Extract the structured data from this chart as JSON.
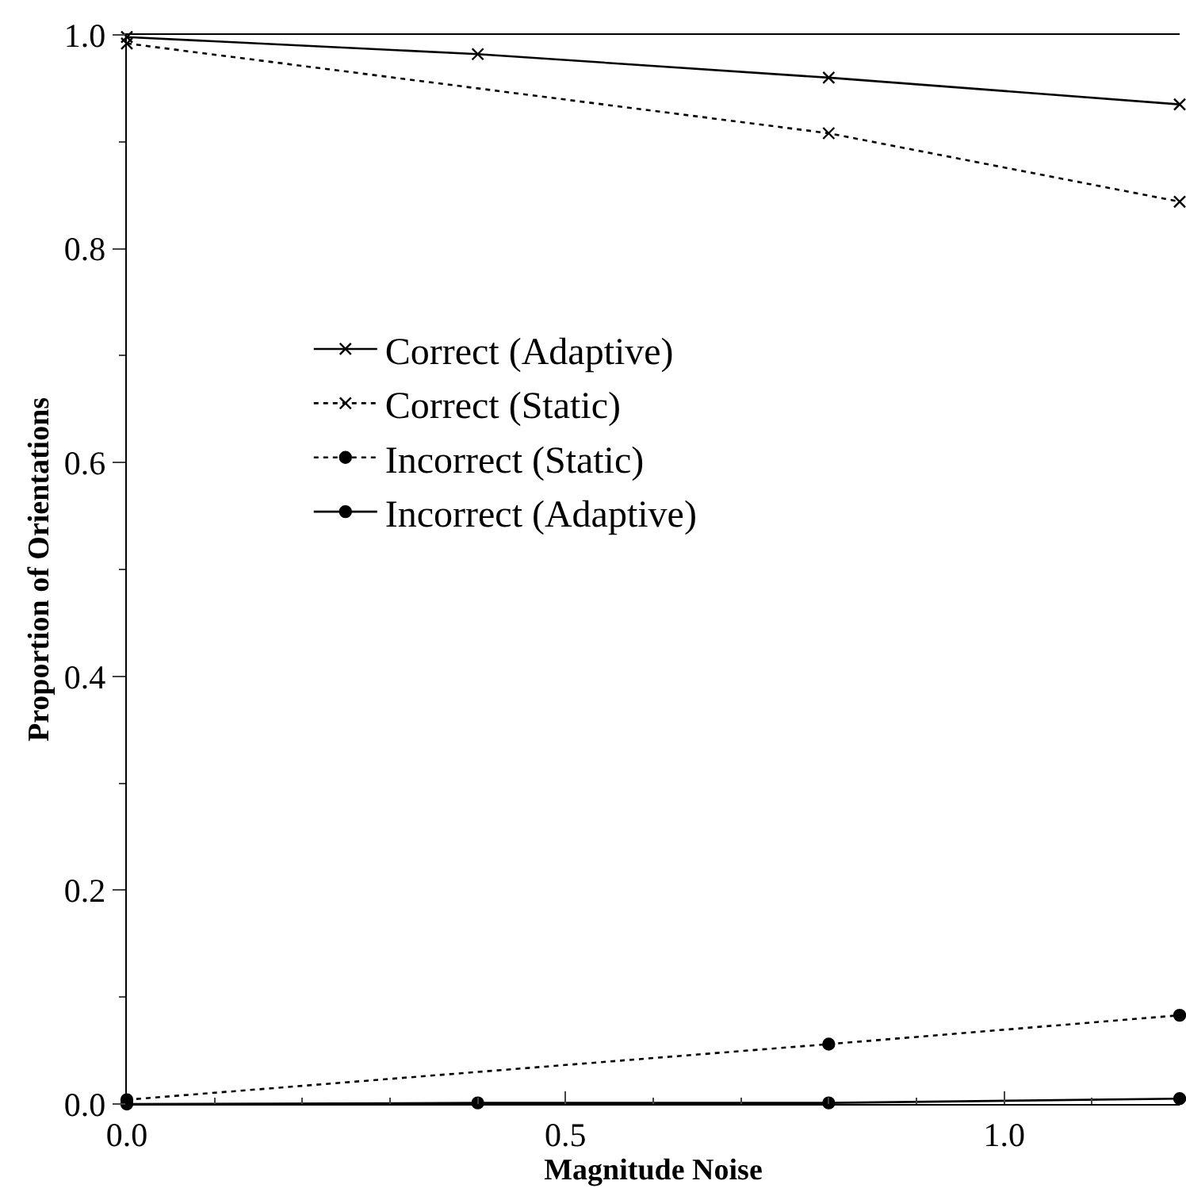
{
  "chart_data": {
    "type": "line",
    "xlabel": "Magnitude Noise",
    "ylabel": "Proportion of Orientations",
    "xlim": [
      0,
      1.2
    ],
    "xticks": [
      {
        "value": 0,
        "label": "0.0"
      },
      0.5,
      {
        "value": 1,
        "label": "1.0"
      }
    ],
    "ylim": [
      0,
      1
    ],
    "yticks": [
      {
        "value": 0,
        "label": "0.0"
      },
      0.2,
      0.4,
      0.6,
      0.8,
      {
        "value": 1,
        "label": "1.0"
      }
    ],
    "legend": "left",
    "series": [
      {
        "name": "Correct (Adaptive)",
        "color": "#000000",
        "x": [
          0,
          0.4,
          0.8,
          1.2
        ],
        "values": [
          0.998,
          0.982,
          0.96,
          0.935
        ],
        "marker": "cross",
        "line_style": "solid"
      },
      {
        "name": "Correct (Static)",
        "color": "#000000",
        "x": [
          0,
          0.8,
          1.2
        ],
        "values": [
          0.992,
          0.908,
          0.844
        ],
        "marker": "cross",
        "line_style": "dotted"
      },
      {
        "name": "Incorrect (Static)",
        "color": "#000000",
        "x": [
          0,
          0.8,
          1.2
        ],
        "values": [
          0.004,
          0.056,
          0.083
        ],
        "marker": "circle",
        "line_style": "dotted"
      },
      {
        "name": "Incorrect (Adaptive)",
        "color": "#000000",
        "x": [
          0,
          0.4,
          0.8,
          1.2
        ],
        "values": [
          0.0,
          0.001,
          0.001,
          0.005
        ],
        "marker": "circle",
        "line_style": "solid"
      }
    ]
  }
}
